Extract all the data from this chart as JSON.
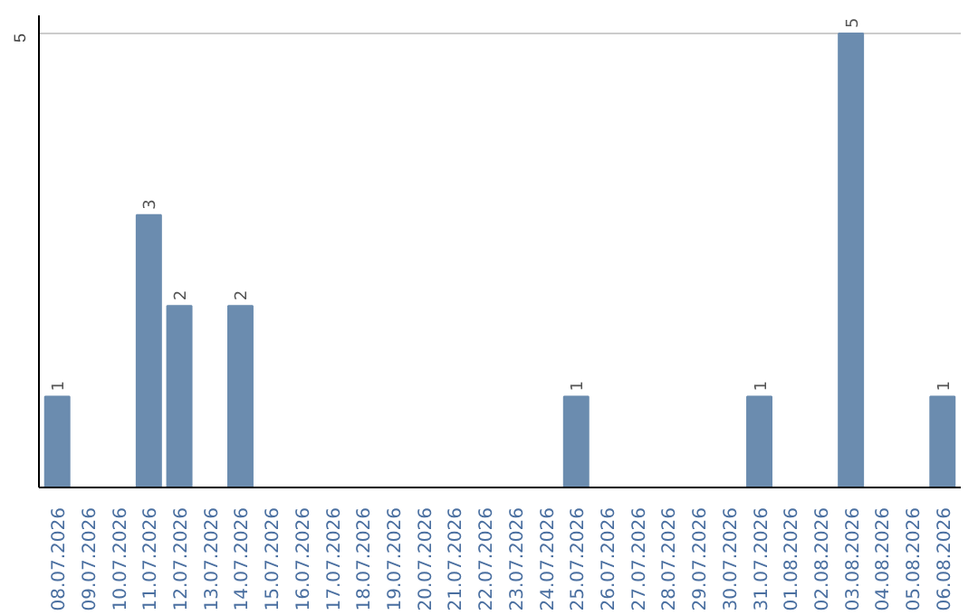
{
  "chart_data": {
    "type": "bar",
    "categories": [
      "08.07.2026",
      "09.07.2026",
      "10.07.2026",
      "11.07.2026",
      "12.07.2026",
      "13.07.2026",
      "14.07.2026",
      "15.07.2026",
      "16.07.2026",
      "17.07.2026",
      "18.07.2026",
      "19.07.2026",
      "20.07.2026",
      "21.07.2026",
      "22.07.2026",
      "23.07.2026",
      "24.07.2026",
      "25.07.2026",
      "26.07.2026",
      "27.07.2026",
      "28.07.2026",
      "29.07.2026",
      "30.07.2026",
      "31.07.2026",
      "01.08.2026",
      "02.08.2026",
      "03.08.2026",
      "04.08.2026",
      "05.08.2026",
      "06.08.2026"
    ],
    "values": [
      1,
      0,
      0,
      3,
      2,
      0,
      2,
      0,
      0,
      0,
      0,
      0,
      0,
      0,
      0,
      0,
      0,
      1,
      0,
      0,
      0,
      0,
      0,
      1,
      0,
      0,
      5,
      0,
      0,
      1
    ],
    "color": "#6b8caf",
    "value_labels": [
      "1",
      null,
      null,
      "3",
      "2",
      null,
      "2",
      null,
      null,
      null,
      null,
      null,
      null,
      null,
      null,
      null,
      null,
      "1",
      null,
      null,
      null,
      null,
      null,
      "1",
      null,
      null,
      "5",
      null,
      null,
      "1"
    ],
    "ylim": [
      0,
      5.2
    ],
    "yticks": [
      5
    ],
    "grid": "y"
  }
}
